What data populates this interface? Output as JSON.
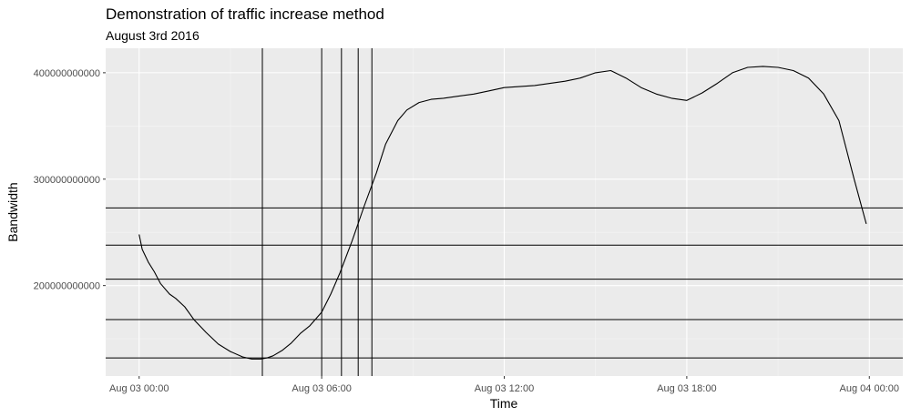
{
  "chart_data": {
    "type": "line",
    "title": "Demonstration of traffic increase method",
    "subtitle": "August 3rd 2016",
    "xlabel": "Time",
    "ylabel": "Bandwidth",
    "x_ticks": [
      "Aug 03 00:00",
      "Aug 03 06:00",
      "Aug 03 12:00",
      "Aug 03 18:00",
      "Aug 04 00:00"
    ],
    "y_ticks": [
      "200000000000",
      "300000000000",
      "400000000000"
    ],
    "y_tick_values": [
      200000000000,
      300000000000,
      400000000000
    ],
    "xlim_hours": [
      -1.1,
      25.1
    ],
    "ylim": [
      115000000000,
      423000000000
    ],
    "grid": true,
    "series": [
      {
        "x_hours": [
          0,
          0.1,
          0.3,
          0.5,
          0.7,
          1.0,
          1.2,
          1.5,
          1.8,
          2.2,
          2.6,
          3.0,
          3.4,
          3.7,
          4.0,
          4.2,
          4.4,
          4.7,
          5.0,
          5.3,
          5.6,
          6.0,
          6.3,
          6.6,
          7.0,
          7.4,
          7.8,
          8.1,
          8.5,
          8.8,
          9.2,
          9.6,
          10.0,
          10.5,
          11.0,
          11.5,
          12.0,
          12.5,
          13.0,
          13.5,
          14.0,
          14.5,
          15.0,
          15.5,
          16.0,
          16.5,
          17.0,
          17.5,
          18.0,
          18.5,
          19.0,
          19.5,
          20.0,
          20.5,
          21.0,
          21.5,
          22.0,
          22.5,
          23.0,
          23.5,
          23.9
        ],
        "y": [
          248000000000,
          234000000000,
          222000000000,
          213000000000,
          202000000000,
          192000000000,
          188000000000,
          180000000000,
          168000000000,
          156000000000,
          145000000000,
          138000000000,
          133000000000,
          131000000000,
          131000000000,
          132000000000,
          134000000000,
          139000000000,
          146000000000,
          155000000000,
          162000000000,
          175000000000,
          192000000000,
          212000000000,
          242000000000,
          275000000000,
          306000000000,
          333000000000,
          355000000000,
          365000000000,
          372000000000,
          375000000000,
          376000000000,
          378000000000,
          380000000000,
          383000000000,
          386000000000,
          387000000000,
          388000000000,
          390000000000,
          392000000000,
          395000000000,
          400000000000,
          402000000000,
          395000000000,
          386000000000,
          380000000000,
          376000000000,
          374000000000,
          381000000000,
          390000000000,
          400000000000,
          405000000000,
          406000000000,
          405000000000,
          402000000000,
          395000000000,
          380000000000,
          355000000000,
          300000000000,
          258000000000
        ]
      }
    ],
    "vlines_hours": [
      4.05,
      6.0,
      6.65,
      7.2,
      7.65
    ],
    "hlines": [
      132000000000,
      168000000000,
      206000000000,
      238000000000,
      273000000000
    ]
  }
}
